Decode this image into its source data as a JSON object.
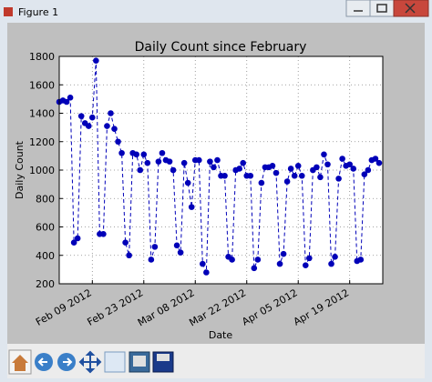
{
  "window": {
    "title": "Figure 1"
  },
  "chart_data": {
    "type": "line",
    "title": "Daily Count since February",
    "xlabel": "Date",
    "ylabel": "Daily Count",
    "x": [
      "2012-01-31",
      "2012-02-01",
      "2012-02-02",
      "2012-02-03",
      "2012-02-04",
      "2012-02-05",
      "2012-02-06",
      "2012-02-07",
      "2012-02-08",
      "2012-02-09",
      "2012-02-10",
      "2012-02-11",
      "2012-02-12",
      "2012-02-13",
      "2012-02-14",
      "2012-02-15",
      "2012-02-16",
      "2012-02-17",
      "2012-02-18",
      "2012-02-19",
      "2012-02-20",
      "2012-02-21",
      "2012-02-22",
      "2012-02-23",
      "2012-02-24",
      "2012-02-25",
      "2012-02-26",
      "2012-02-27",
      "2012-02-28",
      "2012-02-29",
      "2012-03-01",
      "2012-03-02",
      "2012-03-03",
      "2012-03-04",
      "2012-03-05",
      "2012-03-06",
      "2012-03-07",
      "2012-03-08",
      "2012-03-09",
      "2012-03-10",
      "2012-03-11",
      "2012-03-12",
      "2012-03-13",
      "2012-03-14",
      "2012-03-15",
      "2012-03-16",
      "2012-03-17",
      "2012-03-18",
      "2012-03-19",
      "2012-03-20",
      "2012-03-21",
      "2012-03-22",
      "2012-03-23",
      "2012-03-24",
      "2012-03-25",
      "2012-03-26",
      "2012-03-27",
      "2012-03-28",
      "2012-03-29",
      "2012-03-30",
      "2012-03-31",
      "2012-04-01",
      "2012-04-02",
      "2012-04-03",
      "2012-04-04",
      "2012-04-05",
      "2012-04-06",
      "2012-04-07",
      "2012-04-08",
      "2012-04-09",
      "2012-04-10",
      "2012-04-11",
      "2012-04-12",
      "2012-04-13",
      "2012-04-14",
      "2012-04-15",
      "2012-04-16",
      "2012-04-17",
      "2012-04-18",
      "2012-04-19",
      "2012-04-20",
      "2012-04-21",
      "2012-04-22",
      "2012-04-23",
      "2012-04-24",
      "2012-04-25",
      "2012-04-26",
      "2012-04-27"
    ],
    "values": [
      1480,
      1490,
      1480,
      1510,
      490,
      520,
      1380,
      1330,
      1310,
      1370,
      1770,
      550,
      550,
      1310,
      1400,
      1290,
      1200,
      1120,
      490,
      400,
      1120,
      1110,
      1000,
      1110,
      1050,
      370,
      460,
      1060,
      1120,
      1070,
      1060,
      1000,
      470,
      420,
      1050,
      910,
      740,
      1070,
      1070,
      340,
      280,
      1060,
      1020,
      1070,
      960,
      960,
      390,
      370,
      1000,
      1010,
      1050,
      960,
      960,
      310,
      370,
      910,
      1020,
      1020,
      1030,
      980,
      340,
      410,
      920,
      1010,
      960,
      1030,
      960,
      330,
      380,
      1000,
      1020,
      950,
      1110,
      1040,
      340,
      390,
      940,
      1080,
      1030,
      1040,
      1010,
      360,
      370,
      970,
      1000,
      1070,
      1080,
      1050
    ],
    "color": "#0000b8",
    "xlim": [
      "2012-01-31",
      "2012-04-28"
    ],
    "xticks": [
      {
        "value": "2012-02-09",
        "label": "Feb 09 2012"
      },
      {
        "value": "2012-02-23",
        "label": "Feb 23 2012"
      },
      {
        "value": "2012-03-08",
        "label": "Mar 08 2012"
      },
      {
        "value": "2012-03-22",
        "label": "Mar 22 2012"
      },
      {
        "value": "2012-04-05",
        "label": "Apr 05 2012"
      },
      {
        "value": "2012-04-19",
        "label": "Apr 19 2012"
      }
    ],
    "ylim": [
      200,
      1800
    ],
    "yticks": [
      200,
      400,
      600,
      800,
      1000,
      1200,
      1400,
      1600,
      1800
    ],
    "grid": true
  }
}
